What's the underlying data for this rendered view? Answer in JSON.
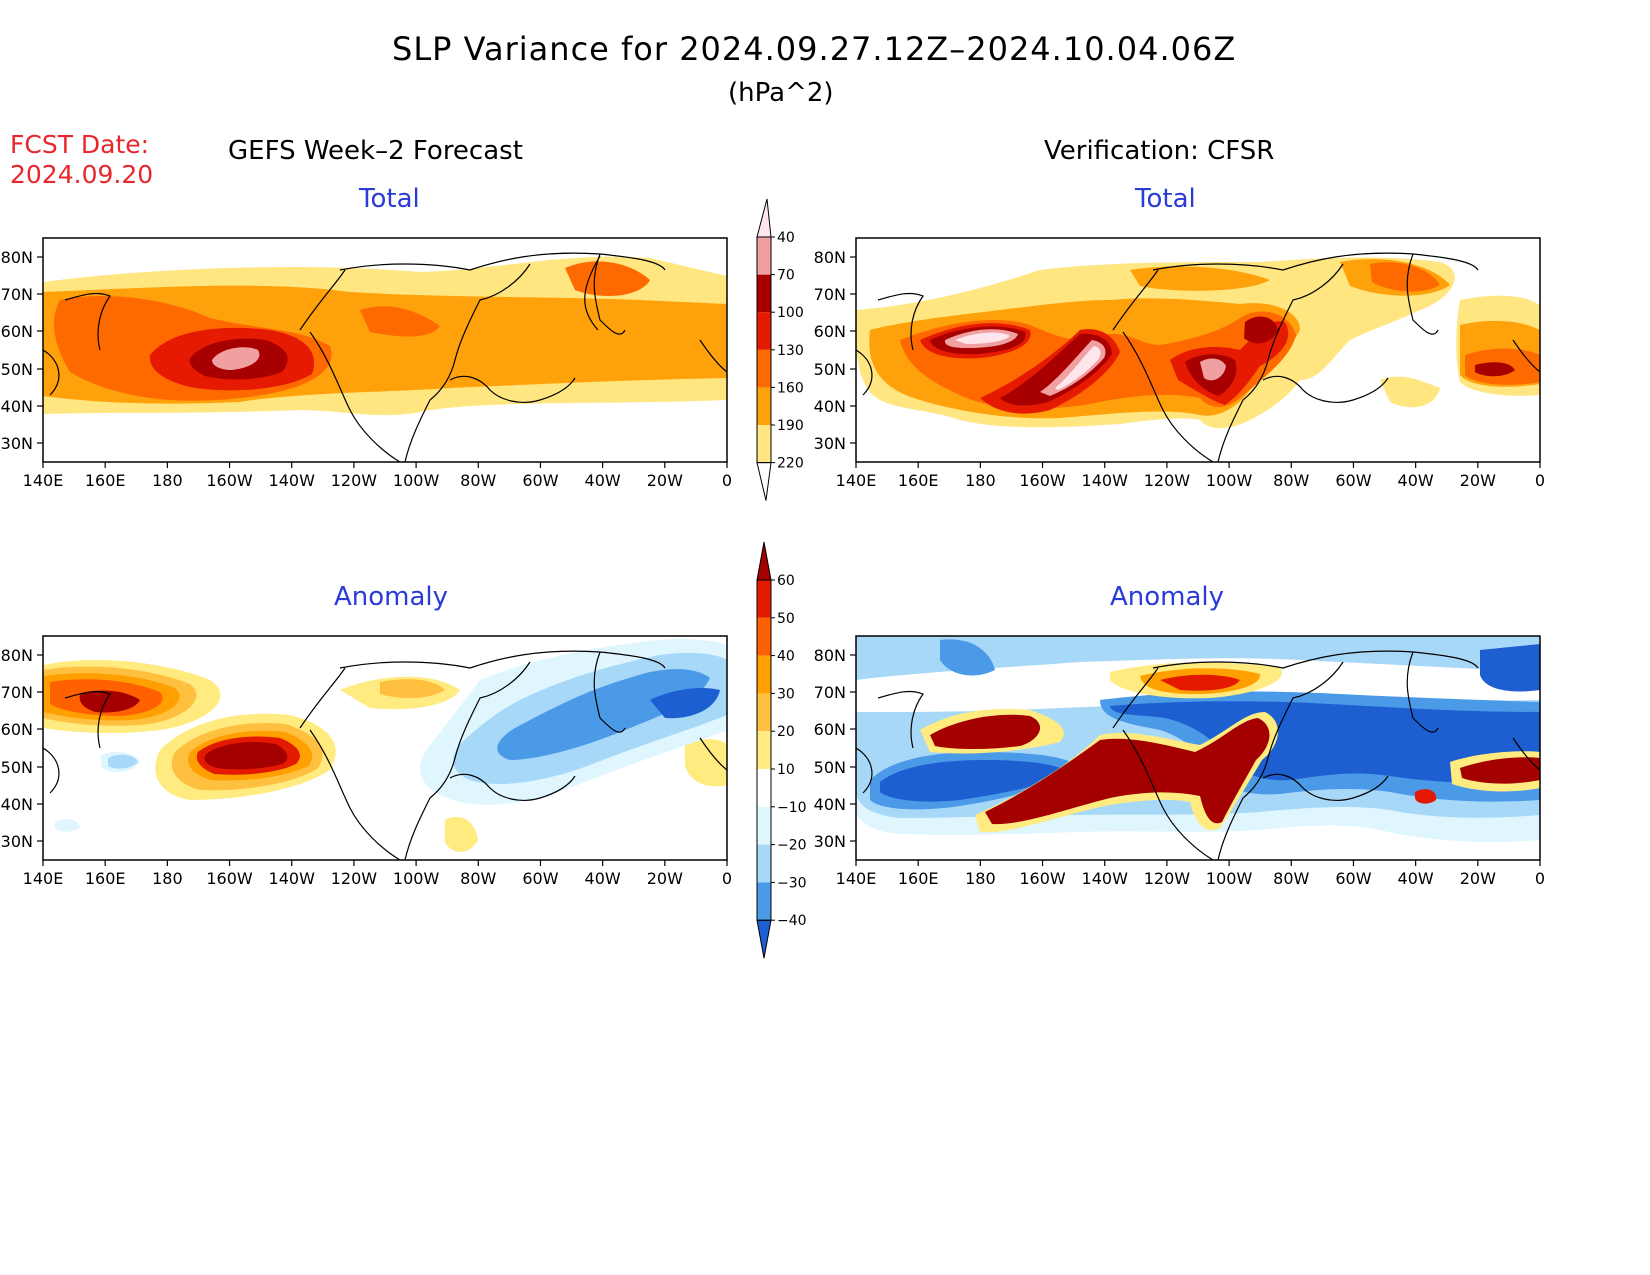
{
  "title": "SLP Variance for 2024.09.27.12Z–2024.10.04.06Z",
  "units": "(hPa^2)",
  "fcst_label": "FCST Date:",
  "fcst_date": "2024.09.20",
  "left_heading": "GEFS Week–2 Forecast",
  "right_heading": "Verification: CFSR",
  "panels": [
    {
      "label": "Total"
    },
    {
      "label": "Total"
    },
    {
      "label": "Anomaly"
    },
    {
      "label": "Anomaly"
    }
  ],
  "lat_ticks": [
    "80N",
    "70N",
    "60N",
    "50N",
    "40N",
    "30N"
  ],
  "lon_ticks": [
    "140E",
    "160E",
    "180",
    "160W",
    "140W",
    "120W",
    "100W",
    "80W",
    "60W",
    "40W",
    "20W",
    "0"
  ],
  "total_colorbar": {
    "levels": [
      "40",
      "70",
      "100",
      "130",
      "160",
      "190",
      "220"
    ],
    "colors": [
      "#ffe680",
      "#ffa10a",
      "#ff6a00",
      "#e61a00",
      "#a80000",
      "#f0a0a0",
      "#ffe6ec"
    ]
  },
  "anomaly_colorbar": {
    "levels": [
      "60",
      "50",
      "40",
      "30",
      "20",
      "10",
      "−10",
      "−20",
      "−30",
      "−40"
    ],
    "colors": [
      "#a50000",
      "#e41a00",
      "#ff6000",
      "#ffa000",
      "#ffc040",
      "#ffeb80",
      "#ffffff",
      "#e0f6ff",
      "#a8d8f8",
      "#4a9ae8",
      "#1d5fd0"
    ]
  }
}
